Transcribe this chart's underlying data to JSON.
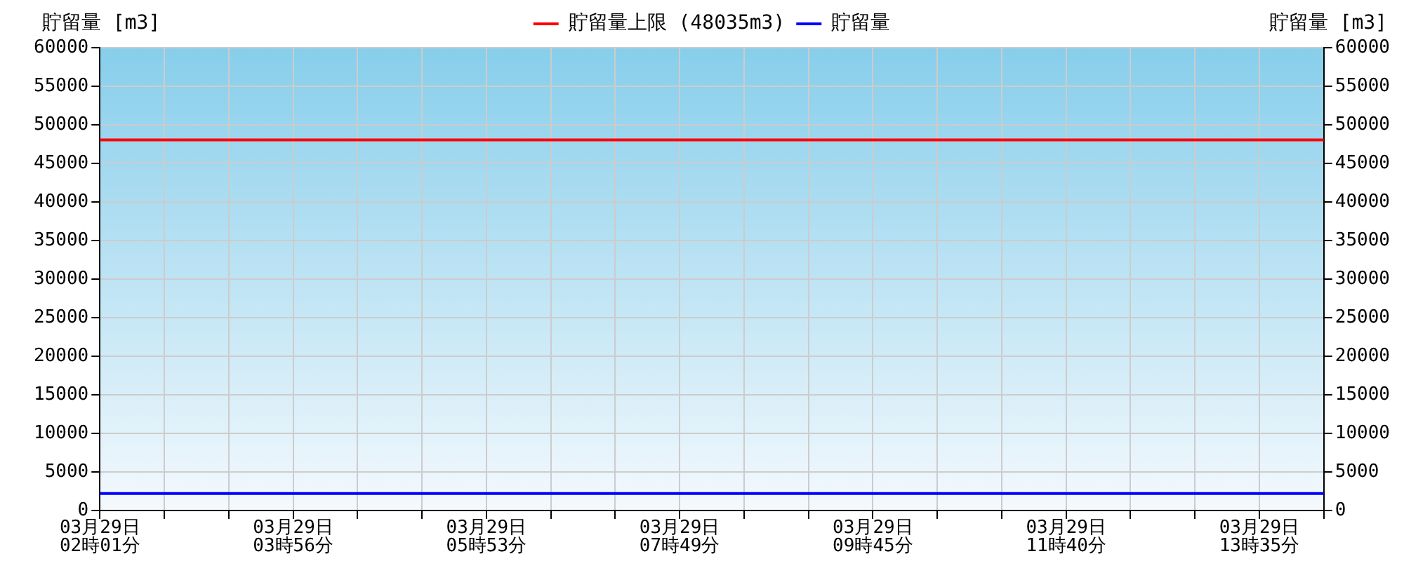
{
  "chart_data": {
    "type": "line",
    "ylabel": "貯留量 [m3]",
    "y2label": "貯留量 [m3]",
    "categories": [
      "03月29日\n02時01分",
      null,
      null,
      "03月29日\n03時56分",
      null,
      null,
      "03月29日\n05時53分",
      null,
      null,
      "03月29日\n07時49分",
      null,
      null,
      "03月29日\n09時45分",
      null,
      null,
      "03月29日\n11時40分",
      null,
      null,
      "03月29日\n13時35分",
      null
    ],
    "series": [
      {
        "name": "貯留量上限 (48035m3)",
        "color": "#ff0000",
        "values": [
          48035,
          48035,
          48035,
          48035,
          48035,
          48035,
          48035,
          48035,
          48035,
          48035,
          48035,
          48035,
          48035,
          48035,
          48035,
          48035,
          48035,
          48035,
          48035,
          48035
        ]
      },
      {
        "name": "貯留量",
        "color": "#0000ff",
        "values": [
          2200,
          2200,
          2200,
          2200,
          2200,
          2200,
          2200,
          2200,
          2200,
          2200,
          2200,
          2200,
          2200,
          2200,
          2200,
          2200,
          2200,
          2200,
          2200,
          2200
        ]
      }
    ],
    "ylim": [
      0,
      60000
    ],
    "yticks": [
      0,
      5000,
      10000,
      15000,
      20000,
      25000,
      30000,
      35000,
      40000,
      45000,
      50000,
      55000,
      60000
    ],
    "y2lim": [
      0,
      60000
    ],
    "y2ticks": [
      0,
      5000,
      10000,
      15000,
      20000,
      25000,
      30000,
      35000,
      40000,
      45000,
      50000,
      55000,
      60000
    ],
    "grid": true,
    "legend": "top",
    "marker": "none",
    "line_style": "solid"
  }
}
